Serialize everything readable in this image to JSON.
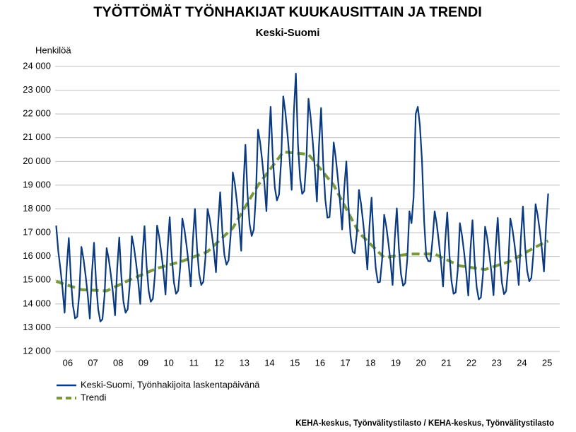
{
  "chart_data": {
    "type": "line",
    "title": "TYÖTTÖMÄT TYÖNHAKIJAT KUUKAUSITTAIN JA TRENDI",
    "subtitle": "Keski-Suomi",
    "y_label": "Henkilöä",
    "source": "KEHA-keskus, Työnvälitystilasto / KEHA-keskus, Työnvälitystilasto",
    "categories": [
      null,
      null,
      null,
      null,
      null,
      null,
      "06",
      null,
      null,
      null,
      null,
      null,
      null,
      null,
      null,
      null,
      null,
      null,
      "07",
      null,
      null,
      null,
      null,
      null,
      null,
      null,
      null,
      null,
      null,
      null,
      "08",
      null,
      null,
      null,
      null,
      null,
      null,
      null,
      null,
      null,
      null,
      null,
      "09",
      null,
      null,
      null,
      null,
      null,
      null,
      null,
      null,
      null,
      null,
      null,
      "10",
      null,
      null,
      null,
      null,
      null,
      null,
      null,
      null,
      null,
      null,
      null,
      "11",
      null,
      null,
      null,
      null,
      null,
      null,
      null,
      null,
      null,
      null,
      null,
      "12",
      null,
      null,
      null,
      null,
      null,
      null,
      null,
      null,
      null,
      null,
      null,
      "13",
      null,
      null,
      null,
      null,
      null,
      null,
      null,
      null,
      null,
      null,
      null,
      "14",
      null,
      null,
      null,
      null,
      null,
      null,
      null,
      null,
      null,
      null,
      null,
      "15",
      null,
      null,
      null,
      null,
      null,
      null,
      null,
      null,
      null,
      null,
      null,
      "16",
      null,
      null,
      null,
      null,
      null,
      null,
      null,
      null,
      null,
      null,
      null,
      "17",
      null,
      null,
      null,
      null,
      null,
      null,
      null,
      null,
      null,
      null,
      null,
      "18",
      null,
      null,
      null,
      null,
      null,
      null,
      null,
      null,
      null,
      null,
      null,
      "19",
      null,
      null,
      null,
      null,
      null,
      null,
      null,
      null,
      null,
      null,
      null,
      "20",
      null,
      null,
      null,
      null,
      null,
      null,
      null,
      null,
      null,
      null,
      null,
      "21",
      null,
      null,
      null,
      null,
      null,
      null,
      null,
      null,
      null,
      null,
      null,
      "22",
      null,
      null,
      null,
      null,
      null,
      null,
      null,
      null,
      null,
      null,
      null,
      "23",
      null,
      null,
      null,
      null,
      null,
      null,
      null,
      null,
      null,
      null,
      null,
      "24",
      null,
      null,
      null,
      null,
      null,
      null,
      null,
      null,
      null,
      null,
      null,
      "25"
    ],
    "series": [
      {
        "name": "Keski-Suomi, Työnhakijoita laskentapäivänä",
        "color": "#0a3a82",
        "values": [
          17300,
          16220,
          15490,
          14660,
          13630,
          15500,
          16775,
          15045,
          13915,
          13390,
          13460,
          14430,
          16400,
          15895,
          15190,
          14385,
          13385,
          15280,
          16575,
          14870,
          13765,
          13260,
          13355,
          14350,
          16350,
          15890,
          15235,
          14475,
          13520,
          15460,
          16800,
          15145,
          14085,
          13630,
          13770,
          14810,
          16850,
          16390,
          15725,
          14960,
          14000,
          15940,
          17275,
          15610,
          14550,
          14090,
          14225,
          15260,
          17300,
          16825,
          16150,
          15375,
          14400,
          16325,
          17650,
          15975,
          14900,
          14425,
          14550,
          15575,
          17600,
          17135,
          16465,
          15700,
          14735,
          16665,
          18000,
          16335,
          15265,
          14800,
          14935,
          15965,
          18000,
          17585,
          16965,
          16250,
          15335,
          17315,
          18700,
          17085,
          16065,
          15650,
          15835,
          16915,
          19540,
          19040,
          18280,
          17390,
          16240,
          18860,
          20700,
          18640,
          17360,
          16860,
          17140,
          18590,
          21340,
          20805,
          20015,
          19090,
          17905,
          20495,
          22300,
          20205,
          18895,
          18360,
          18605,
          20025,
          22740,
          22080,
          21165,
          20115,
          18805,
          22000,
          23700,
          20730,
          19295,
          18635,
          18755,
          20050,
          22640,
          21880,
          20865,
          19715,
          18310,
          20670,
          22250,
          19935,
          18395,
          17635,
          17660,
          18850,
          20800,
          20135,
          19265,
          18300,
          17135,
          18865,
          20000,
          18135,
          16865,
          16200,
          16135,
          16965,
          18800,
          18210,
          17425,
          16540,
          15450,
          17260,
          18475,
          16690,
          15500,
          14910,
          14925,
          15840,
          17750,
          17265,
          16575,
          15790,
          14800,
          16715,
          18025,
          16340,
          15250,
          14765,
          14875,
          15890,
          17900,
          17400,
          18500,
          22000,
          22300,
          21500,
          20000,
          17500,
          16000,
          15800,
          15800,
          16700,
          17900,
          17360,
          16615,
          15775,
          14735,
          16590,
          17850,
          16110,
          14965,
          14425,
          14485,
          15440,
          17400,
          16890,
          16175,
          15360,
          14350,
          16240,
          17525,
          15810,
          14700,
          14190,
          14275,
          15260,
          17250,
          16780,
          16110,
          15340,
          14365,
          16295,
          17625,
          15955,
          14885,
          14410,
          14540,
          15570,
          17600,
          17150,
          16500,
          15750,
          14800,
          16750,
          18100,
          16450,
          15400,
          14950,
          15100,
          16150,
          18200,
          17740,
          17085,
          16325,
          15365,
          17310,
          18650
        ]
      },
      {
        "name": "Trendi",
        "color": "#7a9a3a",
        "dashed": true,
        "values": [
          14950,
          14920,
          14890,
          14860,
          14830,
          14800,
          14775,
          14745,
          14715,
          14690,
          14660,
          14630,
          14600,
          14595,
          14590,
          14585,
          14585,
          14580,
          14575,
          14570,
          14565,
          14560,
          14555,
          14550,
          14550,
          14590,
          14635,
          14675,
          14720,
          14760,
          14800,
          14845,
          14885,
          14930,
          14970,
          15010,
          15050,
          15090,
          15125,
          15160,
          15200,
          15240,
          15275,
          15310,
          15350,
          15390,
          15425,
          15460,
          15500,
          15525,
          15550,
          15575,
          15600,
          15625,
          15650,
          15675,
          15700,
          15725,
          15750,
          15775,
          15800,
          15835,
          15865,
          15900,
          15935,
          15965,
          16000,
          16035,
          16065,
          16100,
          16135,
          16165,
          16200,
          16285,
          16365,
          16450,
          16535,
          16615,
          16700,
          16785,
          16865,
          16950,
          17035,
          17115,
          17200,
          17350,
          17500,
          17650,
          17800,
          17950,
          18100,
          18250,
          18400,
          18550,
          18700,
          18850,
          19000,
          19115,
          19235,
          19350,
          19465,
          19585,
          19700,
          19815,
          19935,
          20050,
          20165,
          20285,
          20400,
          20390,
          20385,
          20375,
          20365,
          20360,
          20350,
          20340,
          20335,
          20325,
          20315,
          20310,
          20300,
          20190,
          20085,
          19975,
          19870,
          19760,
          19650,
          19545,
          19435,
          19325,
          19220,
          19110,
          19000,
          18835,
          18665,
          18500,
          18335,
          18165,
          18000,
          17835,
          17665,
          17500,
          17335,
          17165,
          17000,
          16910,
          16825,
          16740,
          16650,
          16560,
          16475,
          16390,
          16300,
          16210,
          16125,
          16040,
          15950,
          15965,
          15975,
          15990,
          16000,
          16015,
          16025,
          16040,
          16050,
          16065,
          16075,
          16090,
          16100,
          16100,
          16100,
          16100,
          16100,
          16100,
          16100,
          16100,
          16100,
          16100,
          16100,
          16100,
          16100,
          16060,
          16015,
          15975,
          15935,
          15890,
          15850,
          15810,
          15765,
          15725,
          15685,
          15640,
          15600,
          15590,
          15575,
          15560,
          15550,
          15540,
          15525,
          15510,
          15500,
          15490,
          15475,
          15460,
          15450,
          15480,
          15510,
          15540,
          15565,
          15595,
          15625,
          15655,
          15685,
          15710,
          15740,
          15770,
          15800,
          15850,
          15900,
          15950,
          16000,
          16050,
          16100,
          16150,
          16200,
          16250,
          16300,
          16350,
          16400,
          16440,
          16485,
          16525,
          16565,
          16610,
          16650
        ]
      }
    ],
    "ylim": [
      12000,
      24000
    ],
    "yticks": [
      {
        "value": 12000,
        "label": "12 000"
      },
      {
        "value": 13000,
        "label": "13 000"
      },
      {
        "value": 14000,
        "label": "14 000"
      },
      {
        "value": 15000,
        "label": "15 000"
      },
      {
        "value": 16000,
        "label": "16 000"
      },
      {
        "value": 17000,
        "label": "17 000"
      },
      {
        "value": 18000,
        "label": "18 000"
      },
      {
        "value": 19000,
        "label": "19 000"
      },
      {
        "value": 20000,
        "label": "20 000"
      },
      {
        "value": 21000,
        "label": "21 000"
      },
      {
        "value": 22000,
        "label": "22 000"
      },
      {
        "value": 23000,
        "label": "23 000"
      },
      {
        "value": 24000,
        "label": "24 000"
      }
    ],
    "grid": true,
    "legend": "bottom-left"
  }
}
